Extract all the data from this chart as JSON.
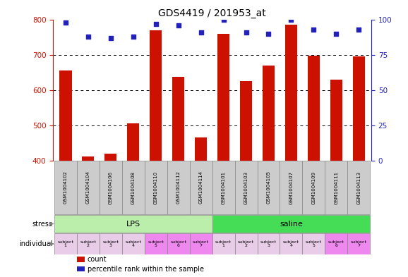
{
  "title": "GDS4419 / 201953_at",
  "samples": [
    "GSM1004102",
    "GSM1004104",
    "GSM1004106",
    "GSM1004108",
    "GSM1004110",
    "GSM1004112",
    "GSM1004114",
    "GSM1004101",
    "GSM1004103",
    "GSM1004105",
    "GSM1004107",
    "GSM1004109",
    "GSM1004111",
    "GSM1004113"
  ],
  "counts": [
    655,
    412,
    420,
    505,
    770,
    638,
    465,
    760,
    625,
    670,
    785,
    698,
    630,
    695
  ],
  "percentiles": [
    98,
    88,
    87,
    88,
    97,
    96,
    91,
    100,
    91,
    90,
    100,
    93,
    90,
    93
  ],
  "ylim_left": [
    400,
    800
  ],
  "ylim_right": [
    0,
    100
  ],
  "yticks_left": [
    400,
    500,
    600,
    700,
    800
  ],
  "yticks_right": [
    0,
    25,
    50,
    75,
    100
  ],
  "stress_lps_color": "#BBEEAA",
  "stress_saline_color": "#44DD55",
  "individual_colors_lps": [
    "#E8CCE8",
    "#E8CCE8",
    "#E8CCE8",
    "#E8CCE8",
    "#EE88EE",
    "#EE88EE",
    "#EE88EE"
  ],
  "individual_colors_saline": [
    "#E8CCE8",
    "#E8CCE8",
    "#E8CCE8",
    "#E8CCE8",
    "#E8CCE8",
    "#EE88EE",
    "#EE88EE"
  ],
  "individual_labels": [
    "subject\n1",
    "subject\n2",
    "subject\n3",
    "subject\n4",
    "subject\n5",
    "subject\n6",
    "subject\n7",
    "subject\n1",
    "subject\n2",
    "subject\n3",
    "subject\n4",
    "subject\n5",
    "subject\n6",
    "subject\n7"
  ],
  "bar_color": "#CC1100",
  "dot_color": "#2222BB",
  "background_color": "#FFFFFF",
  "tick_color_left": "#CC1100",
  "tick_color_right": "#2222BB",
  "xticklabel_bg": "#CCCCCC",
  "grid_dotted_color": "#555555",
  "legend_items": [
    {
      "color": "#CC1100",
      "label": "count"
    },
    {
      "color": "#2222BB",
      "label": "percentile rank within the sample"
    }
  ]
}
